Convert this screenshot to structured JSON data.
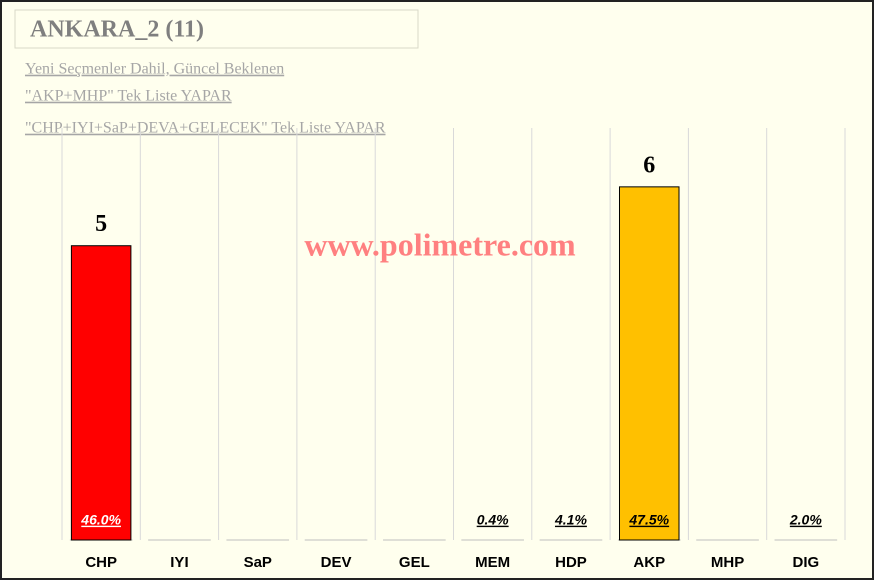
{
  "chart_data": {
    "type": "bar",
    "title": "ANKARA_2 (11)",
    "subtitle": [
      "Yeni Seçmenler Dahil, Güncel Beklenen",
      "\"AKP+MHP\" Tek Liste YAPAR",
      "\"CHP+IYI+SaP+DEVA+GELECEK\" Tek Liste YAPAR"
    ],
    "watermark": "www.polimetre.com",
    "categories": [
      "CHP",
      "IYI",
      "SaP",
      "DEV",
      "GEL",
      "MEM",
      "HDP",
      "AKP",
      "MHP",
      "DIG"
    ],
    "values": [
      5,
      0,
      0,
      0,
      0,
      0,
      0,
      6,
      0,
      0
    ],
    "value_labels": [
      "5",
      null,
      null,
      null,
      null,
      null,
      null,
      "6",
      null,
      null
    ],
    "colors": [
      "#ff0000",
      null,
      null,
      null,
      null,
      null,
      null,
      "#ffc000",
      null,
      null
    ],
    "vote_share": [
      46.0,
      null,
      null,
      null,
      null,
      0.4,
      4.1,
      47.5,
      null,
      2.0
    ],
    "vote_share_labels": [
      "46.0%",
      null,
      null,
      null,
      null,
      "0.4%",
      "4.1%",
      "47.5%",
      null,
      "2.0%"
    ],
    "ylim": [
      0,
      7
    ]
  }
}
